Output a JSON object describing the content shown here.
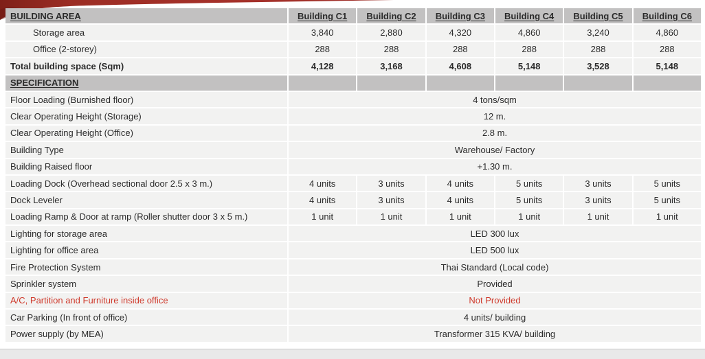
{
  "colors": {
    "header_row_bg": "#c2c1c1",
    "data_row_bg": "#f2f2f1",
    "text": "#2b2b2b",
    "red_text": "#cf3a2c",
    "ribbon_red_dark": "#7f2018",
    "ribbon_red": "#a5312a",
    "page_strip_gray": "#e9e9e9"
  },
  "table": {
    "rows": [
      {
        "type": "header",
        "label": "BUILDING AREA",
        "cols": [
          "Building C1",
          "Building C2",
          "Building C3",
          "Building C4",
          "Building C5",
          "Building C6"
        ]
      },
      {
        "type": "data",
        "label": "Storage area",
        "indent": true,
        "values": [
          "3,840",
          "2,880",
          "4,320",
          "4,860",
          "3,240",
          "4,860"
        ]
      },
      {
        "type": "data",
        "label": "Office (2-storey)",
        "indent": true,
        "values": [
          "288",
          "288",
          "288",
          "288",
          "288",
          "288"
        ]
      },
      {
        "type": "data",
        "label": "Total building space (Sqm)",
        "bold": true,
        "values": [
          "4,128",
          "3,168",
          "4,608",
          "5,148",
          "3,528",
          "5,148"
        ]
      },
      {
        "type": "section",
        "label": "SPECIFICATION"
      },
      {
        "type": "span",
        "label": "Floor Loading (Burnished floor)",
        "value": "4 tons/sqm"
      },
      {
        "type": "span",
        "label": "Clear Operating Height (Storage)",
        "value": "12 m."
      },
      {
        "type": "span",
        "label": "Clear Operating Height (Office)",
        "value": "2.8 m."
      },
      {
        "type": "span",
        "label": "Building Type",
        "value": "Warehouse/ Factory"
      },
      {
        "type": "span",
        "label": "Building Raised floor",
        "value": "+1.30 m."
      },
      {
        "type": "data",
        "label": "Loading Dock (Overhead sectional door 2.5 x 3 m.)",
        "values": [
          "4 units",
          "3 units",
          "4 units",
          "5 units",
          "3 units",
          "5 units"
        ]
      },
      {
        "type": "data",
        "label": "Dock Leveler",
        "values": [
          "4 units",
          "3 units",
          "4 units",
          "5 units",
          "3 units",
          "5 units"
        ]
      },
      {
        "type": "data",
        "label": "Loading Ramp & Door at ramp (Roller shutter door 3 x 5 m.)",
        "values": [
          "1 unit",
          "1 unit",
          "1 unit",
          "1 unit",
          "1 unit",
          "1 unit"
        ]
      },
      {
        "type": "span",
        "label": "Lighting for storage area",
        "value": "LED 300 lux"
      },
      {
        "type": "span",
        "label": "Lighting for office area",
        "value": "LED 500 lux"
      },
      {
        "type": "span",
        "label": "Fire Protection System",
        "value": "Thai Standard (Local code)"
      },
      {
        "type": "span",
        "label": "Sprinkler system",
        "value": "Provided"
      },
      {
        "type": "span",
        "label": "A/C, Partition and Furniture inside office",
        "value": "Not Provided",
        "red": true
      },
      {
        "type": "span",
        "label": "Car Parking (In front of office)",
        "value": "4 units/ building"
      },
      {
        "type": "span",
        "label": "Power supply (by MEA)",
        "value": "Transformer 315 KVA/ building"
      }
    ]
  }
}
